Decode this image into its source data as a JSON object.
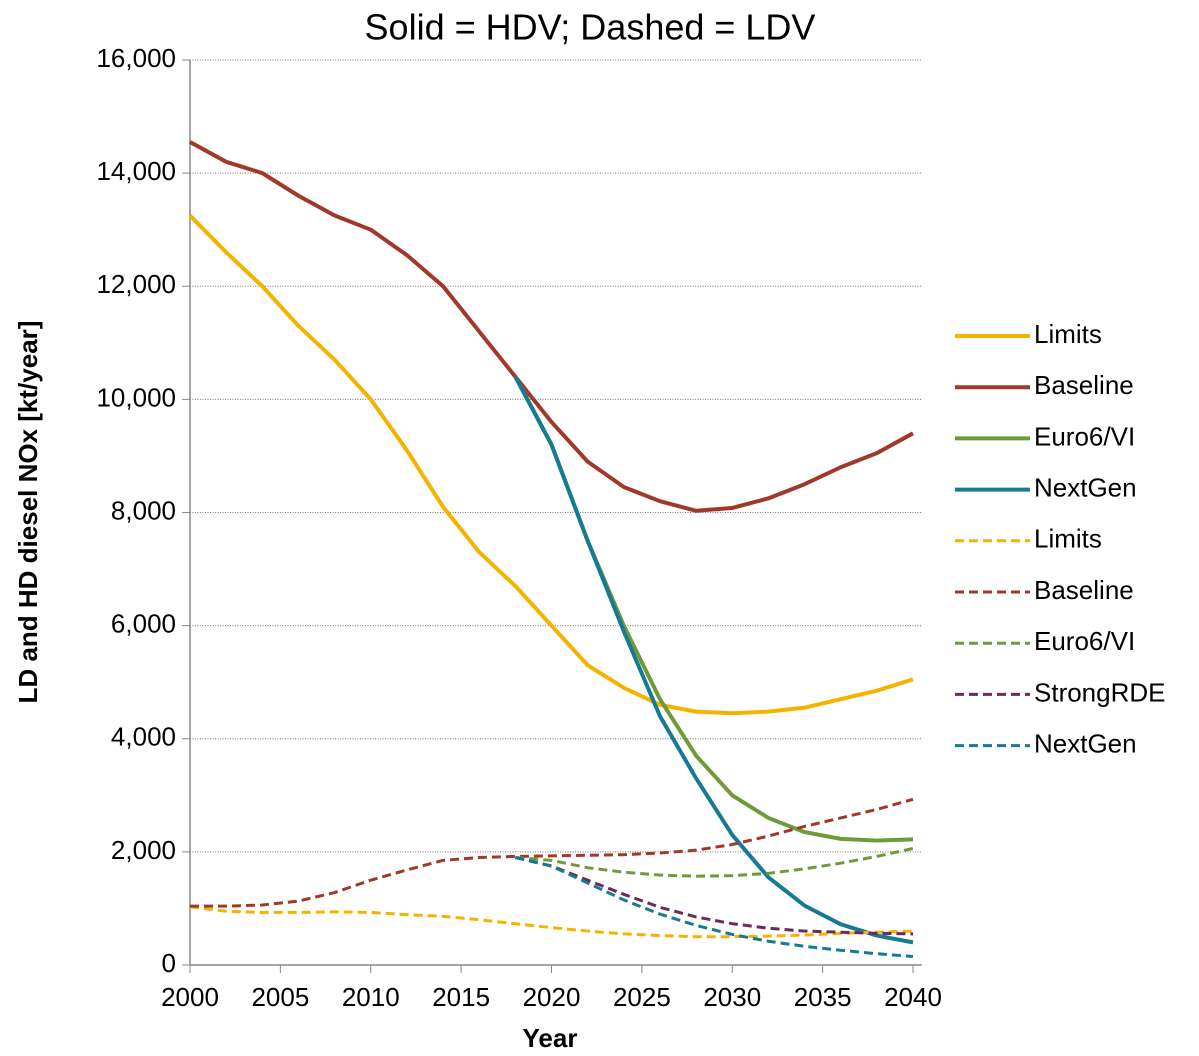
{
  "chart_data": {
    "type": "line",
    "title": "Solid = HDV; Dashed = LDV",
    "x_label": "Year",
    "y_label": "LD and HD diesel NOx [kt/year]",
    "x": [
      2000,
      2002,
      2004,
      2006,
      2008,
      2010,
      2012,
      2014,
      2016,
      2018,
      2020,
      2022,
      2024,
      2026,
      2028,
      2030,
      2032,
      2034,
      2036,
      2038,
      2040
    ],
    "xlim": [
      2000,
      2040
    ],
    "xticks": [
      2000,
      2005,
      2010,
      2015,
      2020,
      2025,
      2030,
      2035,
      2040
    ],
    "ylim": [
      0,
      16000
    ],
    "yticks": [
      0,
      {
        "value": 2000,
        "label": "2,000"
      },
      {
        "value": 4000,
        "label": "4,000"
      },
      {
        "value": 6000,
        "label": "6,000"
      },
      {
        "value": 8000,
        "label": "8,000"
      },
      {
        "value": 10000,
        "label": "10,000"
      },
      {
        "value": 12000,
        "label": "12,000"
      },
      {
        "value": 14000,
        "label": "14,000"
      },
      {
        "value": 16000,
        "label": "16,000"
      }
    ],
    "grid": true,
    "legend": "right",
    "series": [
      {
        "name": "Limits",
        "color": "#f5b300",
        "style": "solid",
        "values": [
          13250,
          12600,
          12000,
          11300,
          10700,
          10000,
          9100,
          8100,
          7300,
          6700,
          6000,
          5300,
          4900,
          4600,
          4480,
          4450,
          4480,
          4550,
          4700,
          4850,
          5050
        ]
      },
      {
        "name": "Baseline",
        "color": "#a0392a",
        "style": "solid",
        "values": [
          14550,
          14200,
          14000,
          13600,
          13250,
          13000,
          12550,
          12000,
          11200,
          10400,
          9600,
          8900,
          8450,
          8200,
          8030,
          8080,
          8250,
          8500,
          8800,
          9050,
          9400
        ]
      },
      {
        "name": "Euro6/VI",
        "color": "#6f9a3a",
        "style": "solid",
        "values": [
          null,
          null,
          null,
          null,
          null,
          null,
          null,
          null,
          null,
          10400,
          9200,
          7500,
          6000,
          4700,
          3700,
          3000,
          2600,
          2350,
          2230,
          2200,
          2220
        ]
      },
      {
        "name": "NextGen",
        "color": "#157a93",
        "style": "solid",
        "values": [
          null,
          null,
          null,
          null,
          null,
          null,
          null,
          null,
          null,
          10400,
          9200,
          7500,
          5900,
          4400,
          3300,
          2300,
          1550,
          1050,
          720,
          520,
          400
        ]
      },
      {
        "name": "Limits",
        "color": "#f5b300",
        "style": "dashed",
        "values": [
          1030,
          950,
          930,
          930,
          940,
          930,
          890,
          860,
          800,
          730,
          660,
          600,
          550,
          520,
          500,
          500,
          510,
          530,
          560,
          580,
          600
        ]
      },
      {
        "name": "Baseline",
        "color": "#a0392a",
        "style": "dashed",
        "values": [
          1040,
          1040,
          1060,
          1130,
          1280,
          1500,
          1680,
          1850,
          1900,
          1920,
          1930,
          1940,
          1950,
          1980,
          2030,
          2130,
          2280,
          2450,
          2600,
          2750,
          2930
        ]
      },
      {
        "name": "Euro6/VI",
        "color": "#6f9a3a",
        "style": "dashed",
        "values": [
          null,
          null,
          null,
          null,
          null,
          null,
          null,
          null,
          null,
          1900,
          1850,
          1720,
          1640,
          1590,
          1570,
          1580,
          1620,
          1700,
          1800,
          1920,
          2060
        ]
      },
      {
        "name": "StrongRDE",
        "color": "#6b2a5e",
        "style": "dashed",
        "values": [
          null,
          null,
          null,
          null,
          null,
          null,
          null,
          null,
          null,
          1900,
          1750,
          1500,
          1250,
          1020,
          850,
          730,
          650,
          600,
          580,
          560,
          550
        ]
      },
      {
        "name": "NextGen",
        "color": "#157a93",
        "style": "dashed",
        "values": [
          null,
          null,
          null,
          null,
          null,
          null,
          null,
          null,
          null,
          1900,
          1750,
          1450,
          1150,
          900,
          700,
          540,
          420,
          330,
          260,
          200,
          150
        ]
      }
    ]
  }
}
